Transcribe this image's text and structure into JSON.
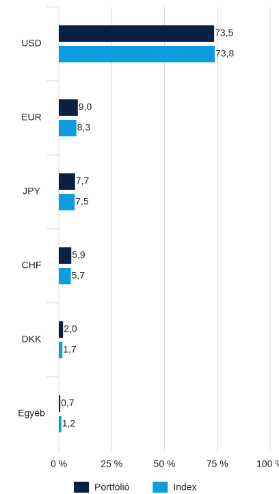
{
  "chart_data": {
    "type": "bar",
    "orientation": "horizontal",
    "categories": [
      "USD",
      "EUR",
      "JPY",
      "CHF",
      "DKK",
      "Egyéb"
    ],
    "series": [
      {
        "name": "Portfólió",
        "color": "#0a1f44",
        "values": [
          73.5,
          9.0,
          7.7,
          5.9,
          2.0,
          0.7
        ],
        "value_labels": [
          "73,5",
          "9,0",
          "7,7",
          "5,9",
          "2,0",
          "0,7"
        ]
      },
      {
        "name": "Index",
        "color": "#0a9de0",
        "values": [
          73.8,
          8.3,
          7.5,
          5.7,
          1.7,
          1.2
        ],
        "value_labels": [
          "73,8",
          "8,3",
          "7,5",
          "5,7",
          "1,7",
          "1,2"
        ]
      }
    ],
    "xlim": [
      0,
      100
    ],
    "xticks": [
      {
        "value": 0,
        "label": "0 %"
      },
      {
        "value": 25,
        "label": "25 %"
      },
      {
        "value": 50,
        "label": "50 %"
      },
      {
        "value": 75,
        "label": "75 %"
      },
      {
        "value": 100,
        "label": "100 %"
      }
    ],
    "grid": true,
    "legend": "bottom"
  }
}
